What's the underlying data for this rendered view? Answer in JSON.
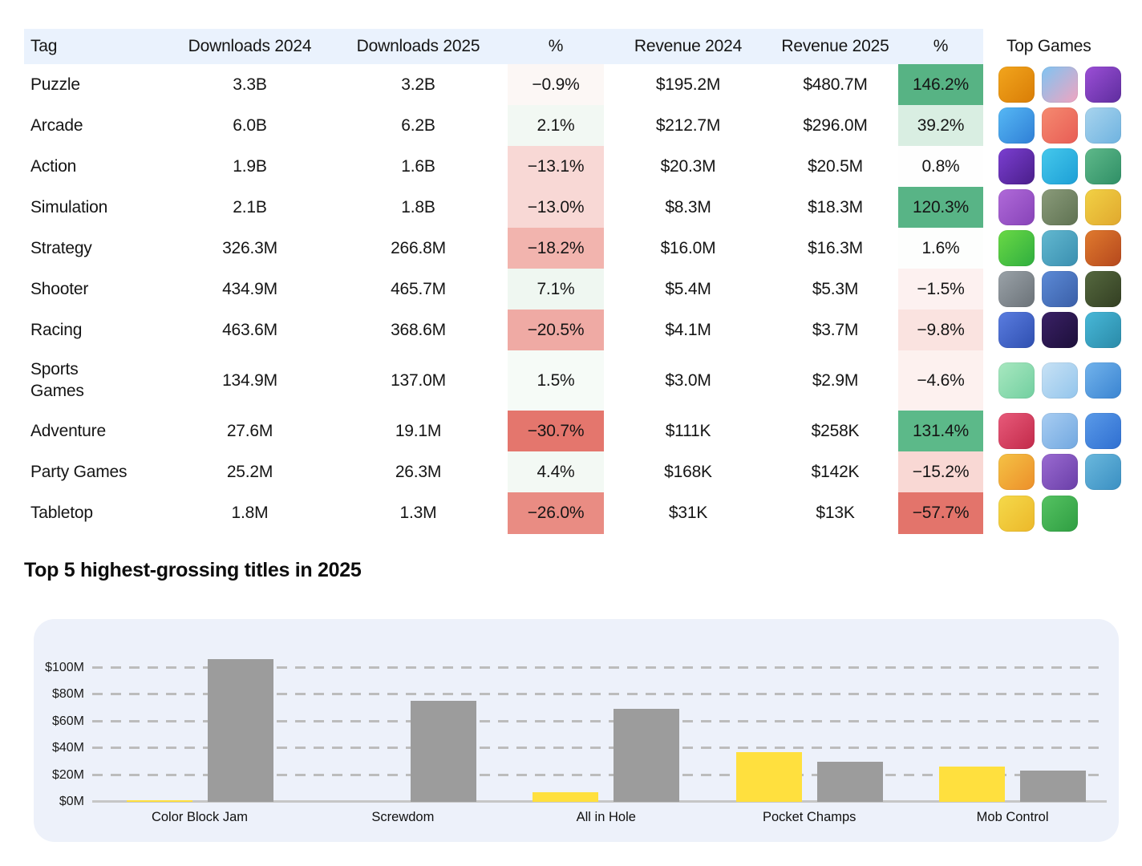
{
  "table": {
    "headers": {
      "tag": "Tag",
      "downloads_2024": "Downloads 2024",
      "downloads_2025": "Downloads 2025",
      "downloads_change": "%",
      "revenue_2024": "Revenue 2024",
      "revenue_2025": "Revenue 2025",
      "revenue_change": "%",
      "top_games": "Top Games"
    },
    "rows": [
      {
        "tag": "Puzzle",
        "downloads_2024": "3.3B",
        "downloads_2025": "3.2B",
        "downloads_change": "−0.9%",
        "downloads_change_bg": "#fcf7f5",
        "revenue_2024": "$195.2M",
        "revenue_2025": "$480.7M",
        "revenue_change": "146.2%",
        "revenue_change_bg": "#57b384",
        "icons": [
          {
            "name": "pixel-smiley-game-icon",
            "colors": [
              "#f2a51d",
              "#d97d06"
            ]
          },
          {
            "name": "gingerbread-house-game-icon",
            "colors": [
              "#7fc4f2",
              "#f0a4c0"
            ]
          },
          {
            "name": "purple-spiral-game-icon",
            "colors": [
              "#9b4fd6",
              "#5e2d9e"
            ]
          }
        ]
      },
      {
        "tag": "Arcade",
        "downloads_2024": "6.0B",
        "downloads_2025": "6.2B",
        "downloads_change": "2.1%",
        "downloads_change_bg": "#f2f8f3",
        "revenue_2024": "$212.7M",
        "revenue_2025": "$296.0M",
        "revenue_change": "39.2%",
        "revenue_change_bg": "#d9eee2",
        "icons": [
          {
            "name": "watermelon-monster-game-icon",
            "colors": [
              "#56b8f5",
              "#2f7fd6"
            ]
          },
          {
            "name": "jelly-runners-game-icon",
            "colors": [
              "#f58a70",
              "#e85d55"
            ]
          },
          {
            "name": "crowd-runner-game-icon",
            "colors": [
              "#a8d4ee",
              "#6fb3e0"
            ]
          }
        ]
      },
      {
        "tag": "Action",
        "downloads_2024": "1.9B",
        "downloads_2025": "1.6B",
        "downloads_change": "−13.1%",
        "downloads_change_bg": "#f8d8d5",
        "revenue_2024": "$20.3M",
        "revenue_2025": "$20.5M",
        "revenue_change": "0.8%",
        "revenue_change_bg": "#fefefe",
        "icons": [
          {
            "name": "timeline-up-game-icon",
            "colors": [
              "#7b3fd1",
              "#4a1e8a"
            ]
          },
          {
            "name": "elf-archer-game-icon",
            "colors": [
              "#45c8ec",
              "#1d9fd6"
            ]
          },
          {
            "name": "huntress-game-icon",
            "colors": [
              "#5fb98a",
              "#2f8f66"
            ]
          }
        ]
      },
      {
        "tag": "Simulation",
        "downloads_2024": "2.1B",
        "downloads_2025": "1.8B",
        "downloads_change": "−13.0%",
        "downloads_change_bg": "#f8d8d5",
        "revenue_2024": "$8.3M",
        "revenue_2025": "$18.3M",
        "revenue_change": "120.3%",
        "revenue_change_bg": "#58b486",
        "icons": [
          {
            "name": "toy-box-game-icon",
            "colors": [
              "#b06ad9",
              "#8743b8"
            ]
          },
          {
            "name": "dinosaur-game-icon",
            "colors": [
              "#8a9b7a",
              "#5f7252"
            ]
          },
          {
            "name": "capybara-game-icon",
            "colors": [
              "#f2d145",
              "#e0a82e"
            ]
          }
        ]
      },
      {
        "tag": "Strategy",
        "downloads_2024": "326.3M",
        "downloads_2025": "266.8M",
        "downloads_change": "−18.2%",
        "downloads_change_bg": "#f2b4ae",
        "revenue_2024": "$16.0M",
        "revenue_2025": "$16.3M",
        "revenue_change": "1.6%",
        "revenue_change_bg": "#fdfefd",
        "icons": [
          {
            "name": "card-battle-game-icon",
            "colors": [
              "#6ad945",
              "#2fae3f"
            ]
          },
          {
            "name": "island-defense-game-icon",
            "colors": [
              "#62b8d0",
              "#3a8fb0"
            ]
          },
          {
            "name": "card-swap-game-icon",
            "colors": [
              "#e07a2e",
              "#b5481d"
            ]
          }
        ]
      },
      {
        "tag": "Shooter",
        "downloads_2024": "434.9M",
        "downloads_2025": "465.7M",
        "downloads_change": "7.1%",
        "downloads_change_bg": "#eff7f1",
        "revenue_2024": "$5.4M",
        "revenue_2025": "$5.3M",
        "revenue_change": "−1.5%",
        "revenue_change_bg": "#fdf1f0",
        "icons": [
          {
            "name": "sniper-game-icon",
            "colors": [
              "#9aa2a8",
              "#6b7278"
            ]
          },
          {
            "name": "balloon-shooter-game-icon",
            "colors": [
              "#5c8ad6",
              "#3a5fa8"
            ]
          },
          {
            "name": "hunting-scope-game-icon",
            "colors": [
              "#55683f",
              "#333f22"
            ]
          }
        ]
      },
      {
        "tag": "Racing",
        "downloads_2024": "463.6M",
        "downloads_2025": "368.6M",
        "downloads_change": "−20.5%",
        "downloads_change_bg": "#efaaa4",
        "revenue_2024": "$4.1M",
        "revenue_2025": "$3.7M",
        "revenue_change": "−9.8%",
        "revenue_change_bg": "#fae3e0",
        "icons": [
          {
            "name": "sports-car-game-icon",
            "colors": [
              "#5a7de0",
              "#2f4fb0"
            ]
          },
          {
            "name": "neon-moto-game-icon",
            "colors": [
              "#3a2166",
              "#1d0f3a"
            ]
          },
          {
            "name": "monster-truck-game-icon",
            "colors": [
              "#48b8d8",
              "#2a8aa8"
            ]
          }
        ]
      },
      {
        "tag": "Sports Games",
        "downloads_2024": "134.9M",
        "downloads_2025": "137.0M",
        "downloads_change": "1.5%",
        "downloads_change_bg": "#f6fbf7",
        "revenue_2024": "$3.0M",
        "revenue_2025": "$2.9M",
        "revenue_change": "−4.6%",
        "revenue_change_bg": "#fdf1ef",
        "icons": [
          {
            "name": "golf-flag-game-icon",
            "colors": [
              "#a8e8c0",
              "#72cfa0"
            ]
          },
          {
            "name": "flip-diving-game-icon",
            "colors": [
              "#c8e2f5",
              "#93c5ec"
            ]
          },
          {
            "name": "winged-basketball-game-icon",
            "colors": [
              "#72b3ec",
              "#3a84d1"
            ]
          }
        ]
      },
      {
        "tag": "Adventure",
        "downloads_2024": "27.6M",
        "downloads_2025": "19.1M",
        "downloads_change": "−30.7%",
        "downloads_change_bg": "#e4766d",
        "revenue_2024": "$111K",
        "revenue_2025": "$258K",
        "revenue_change": "131.4%",
        "revenue_change_bg": "#5cb989",
        "icons": [
          {
            "name": "heroes-game-icon",
            "colors": [
              "#e85a7a",
              "#c22a4a"
            ]
          },
          {
            "name": "angel-halo-game-icon",
            "colors": [
              "#a8cdf2",
              "#72a8e0"
            ]
          },
          {
            "name": "chat-emoji-game-icon",
            "colors": [
              "#5a9ae8",
              "#2f6fd1"
            ]
          }
        ]
      },
      {
        "tag": "Party Games",
        "downloads_2024": "25.2M",
        "downloads_2025": "26.3M",
        "downloads_change": "4.4%",
        "downloads_change_bg": "#f3f9f4",
        "revenue_2024": "$168K",
        "revenue_2025": "$142K",
        "revenue_change": "−15.2%",
        "revenue_change_bg": "#f9d8d4",
        "icons": [
          {
            "name": "blue-blob-party-game-icon",
            "colors": [
              "#f5c245",
              "#ec8f2a"
            ]
          },
          {
            "name": "party-map-game-icon",
            "colors": [
              "#9a6ad1",
              "#6a3fa8"
            ]
          },
          {
            "name": "balloon-party-game-icon",
            "colors": [
              "#6ab8dd",
              "#3a8fc2"
            ]
          }
        ]
      },
      {
        "tag": "Tabletop",
        "downloads_2024": "1.8M",
        "downloads_2025": "1.3M",
        "downloads_change": "−26.0%",
        "downloads_change_bg": "#e98c83",
        "revenue_2024": "$31K",
        "revenue_2025": "$13K",
        "revenue_change": "−57.7%",
        "revenue_change_bg": "#e3746b",
        "icons": [
          {
            "name": "quiz-beanie-game-icon",
            "colors": [
              "#f5d94a",
              "#ecb82a"
            ]
          },
          {
            "name": "card-21-game-icon",
            "colors": [
              "#55c262",
              "#2f9e42"
            ]
          }
        ]
      }
    ]
  },
  "chart_section": {
    "title": "Top 5 highest-grossing titles in 2025"
  },
  "chart_data": {
    "type": "bar",
    "title": "Top 5 highest-grossing titles in 2025",
    "categories": [
      "Color Block Jam",
      "Screwdom",
      "All in Hole",
      "Pocket Champs",
      "Mob Control"
    ],
    "series": [
      {
        "name": "series-yellow",
        "color": "#ffe03e",
        "values": [
          1,
          0,
          7,
          37,
          26
        ]
      },
      {
        "name": "series-gray",
        "color": "#9c9c9c",
        "values": [
          106,
          75,
          69,
          30,
          23
        ]
      }
    ],
    "ylabel": "",
    "yticks": [
      0,
      20,
      40,
      60,
      80,
      100
    ],
    "ytick_format": "$[v]M",
    "ylim": [
      0,
      112
    ],
    "grid": "dashed-horizontal",
    "legend_position": "none",
    "background": "#edf1fa"
  }
}
